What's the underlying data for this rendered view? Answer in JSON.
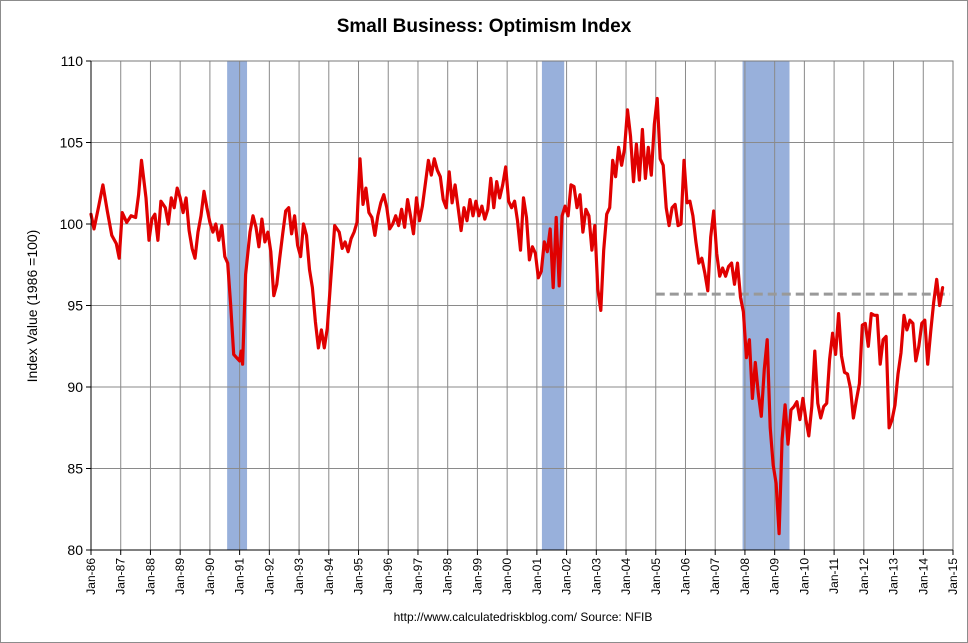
{
  "chart_data": {
    "type": "line",
    "title": "Small Business: Optimism Index",
    "xlabel": "",
    "ylabel": "Index Value (1986 =100)",
    "ylim": [
      80,
      110
    ],
    "yticks": [
      80,
      85,
      90,
      95,
      100,
      105,
      110
    ],
    "xlim": [
      1986,
      2015
    ],
    "xtick_labels": [
      "Jan-86",
      "Jan-87",
      "Jan-88",
      "Jan-89",
      "Jan-90",
      "Jan-91",
      "Jan-92",
      "Jan-93",
      "Jan-94",
      "Jan-95",
      "Jan-96",
      "Jan-97",
      "Jan-98",
      "Jan-99",
      "Jan-00",
      "Jan-01",
      "Jan-02",
      "Jan-03",
      "Jan-04",
      "Jan-05",
      "Jan-06",
      "Jan-07",
      "Jan-08",
      "Jan-09",
      "Jan-10",
      "Jan-11",
      "Jan-12",
      "Jan-13",
      "Jan-14",
      "Jan-15"
    ],
    "grid": true,
    "recessions": [
      {
        "start": 1990.58,
        "end": 1991.25
      },
      {
        "start": 2001.17,
        "end": 2001.92
      },
      {
        "start": 2007.92,
        "end": 2009.5
      }
    ],
    "reference_line": {
      "value": 95.7,
      "x_start": 2005.0,
      "x_end": 2014.9,
      "color": "#999999"
    },
    "series": [
      {
        "name": "Optimism Index",
        "color": "#e00000",
        "points": [
          [
            1986.0,
            100.6
          ],
          [
            1986.1,
            99.7
          ],
          [
            1986.25,
            101.0
          ],
          [
            1986.4,
            102.4
          ],
          [
            1986.55,
            100.8
          ],
          [
            1986.7,
            99.3
          ],
          [
            1986.85,
            98.8
          ],
          [
            1986.95,
            97.9
          ],
          [
            1987.05,
            100.7
          ],
          [
            1987.2,
            100.1
          ],
          [
            1987.35,
            100.5
          ],
          [
            1987.5,
            100.4
          ],
          [
            1987.6,
            101.8
          ],
          [
            1987.7,
            103.9
          ],
          [
            1987.85,
            101.6
          ],
          [
            1987.95,
            99.0
          ],
          [
            1988.05,
            100.3
          ],
          [
            1988.15,
            100.6
          ],
          [
            1988.25,
            99.0
          ],
          [
            1988.35,
            101.4
          ],
          [
            1988.5,
            101.0
          ],
          [
            1988.6,
            100.0
          ],
          [
            1988.7,
            101.6
          ],
          [
            1988.8,
            101.0
          ],
          [
            1988.9,
            102.2
          ],
          [
            1989.0,
            101.6
          ],
          [
            1989.1,
            100.7
          ],
          [
            1989.2,
            101.6
          ],
          [
            1989.3,
            99.6
          ],
          [
            1989.4,
            98.5
          ],
          [
            1989.5,
            97.9
          ],
          [
            1989.6,
            99.5
          ],
          [
            1989.7,
            100.5
          ],
          [
            1989.8,
            102.0
          ],
          [
            1989.9,
            101.0
          ],
          [
            1990.0,
            100.1
          ],
          [
            1990.1,
            99.5
          ],
          [
            1990.2,
            100.0
          ],
          [
            1990.3,
            99.0
          ],
          [
            1990.4,
            99.9
          ],
          [
            1990.5,
            98.0
          ],
          [
            1990.6,
            97.6
          ],
          [
            1990.7,
            95.0
          ],
          [
            1990.8,
            92.0
          ],
          [
            1990.9,
            91.8
          ],
          [
            1991.0,
            91.6
          ],
          [
            1991.05,
            92.2
          ],
          [
            1991.1,
            91.4
          ],
          [
            1991.2,
            96.9
          ],
          [
            1991.35,
            99.5
          ],
          [
            1991.45,
            100.5
          ],
          [
            1991.55,
            99.8
          ],
          [
            1991.65,
            98.6
          ],
          [
            1991.75,
            100.3
          ],
          [
            1991.85,
            98.9
          ],
          [
            1991.95,
            99.5
          ],
          [
            1992.05,
            98.3
          ],
          [
            1992.15,
            95.6
          ],
          [
            1992.25,
            96.3
          ],
          [
            1992.35,
            97.9
          ],
          [
            1992.45,
            99.4
          ],
          [
            1992.55,
            100.8
          ],
          [
            1992.65,
            101.0
          ],
          [
            1992.75,
            99.4
          ],
          [
            1992.85,
            100.5
          ],
          [
            1992.95,
            98.7
          ],
          [
            1993.05,
            98.0
          ],
          [
            1993.15,
            100.0
          ],
          [
            1993.25,
            99.3
          ],
          [
            1993.35,
            97.2
          ],
          [
            1993.45,
            96.1
          ],
          [
            1993.55,
            94.0
          ],
          [
            1993.65,
            92.4
          ],
          [
            1993.75,
            93.5
          ],
          [
            1993.85,
            92.4
          ],
          [
            1993.95,
            93.6
          ],
          [
            1994.05,
            96.2
          ],
          [
            1994.2,
            99.9
          ],
          [
            1994.35,
            99.5
          ],
          [
            1994.45,
            98.5
          ],
          [
            1994.55,
            98.9
          ],
          [
            1994.65,
            98.3
          ],
          [
            1994.75,
            99.1
          ],
          [
            1994.85,
            99.5
          ],
          [
            1994.95,
            100.1
          ],
          [
            1995.05,
            104.0
          ],
          [
            1995.15,
            101.2
          ],
          [
            1995.25,
            102.2
          ],
          [
            1995.35,
            100.7
          ],
          [
            1995.45,
            100.4
          ],
          [
            1995.55,
            99.3
          ],
          [
            1995.65,
            100.5
          ],
          [
            1995.75,
            101.3
          ],
          [
            1995.85,
            101.8
          ],
          [
            1995.95,
            101.0
          ],
          [
            1996.05,
            99.7
          ],
          [
            1996.15,
            100.0
          ],
          [
            1996.25,
            100.5
          ],
          [
            1996.35,
            99.9
          ],
          [
            1996.45,
            100.9
          ],
          [
            1996.55,
            99.8
          ],
          [
            1996.65,
            101.5
          ],
          [
            1996.75,
            100.5
          ],
          [
            1996.85,
            99.4
          ],
          [
            1996.95,
            101.6
          ],
          [
            1997.05,
            100.2
          ],
          [
            1997.15,
            101.1
          ],
          [
            1997.25,
            102.5
          ],
          [
            1997.35,
            103.9
          ],
          [
            1997.45,
            103.0
          ],
          [
            1997.55,
            104.0
          ],
          [
            1997.65,
            103.3
          ],
          [
            1997.75,
            102.9
          ],
          [
            1997.85,
            101.5
          ],
          [
            1997.95,
            101.0
          ],
          [
            1998.05,
            103.2
          ],
          [
            1998.15,
            101.3
          ],
          [
            1998.25,
            102.4
          ],
          [
            1998.35,
            101.0
          ],
          [
            1998.45,
            99.6
          ],
          [
            1998.55,
            101.0
          ],
          [
            1998.65,
            100.2
          ],
          [
            1998.75,
            101.5
          ],
          [
            1998.85,
            100.5
          ],
          [
            1998.95,
            101.4
          ],
          [
            1999.05,
            100.5
          ],
          [
            1999.15,
            101.1
          ],
          [
            1999.25,
            100.3
          ],
          [
            1999.35,
            100.9
          ],
          [
            1999.45,
            102.8
          ],
          [
            1999.55,
            101.0
          ],
          [
            1999.65,
            102.6
          ],
          [
            1999.75,
            101.6
          ],
          [
            1999.85,
            102.4
          ],
          [
            1999.95,
            103.5
          ],
          [
            2000.05,
            101.4
          ],
          [
            2000.15,
            101.0
          ],
          [
            2000.25,
            101.4
          ],
          [
            2000.35,
            100.2
          ],
          [
            2000.45,
            98.4
          ],
          [
            2000.55,
            101.6
          ],
          [
            2000.65,
            100.4
          ],
          [
            2000.75,
            97.8
          ],
          [
            2000.85,
            98.6
          ],
          [
            2000.95,
            98.2
          ],
          [
            2001.05,
            96.7
          ],
          [
            2001.15,
            97.1
          ],
          [
            2001.25,
            98.9
          ],
          [
            2001.35,
            98.3
          ],
          [
            2001.45,
            99.7
          ],
          [
            2001.55,
            96.1
          ],
          [
            2001.65,
            100.4
          ],
          [
            2001.75,
            96.2
          ],
          [
            2001.85,
            100.5
          ],
          [
            2001.95,
            101.1
          ],
          [
            2002.05,
            100.5
          ],
          [
            2002.15,
            102.4
          ],
          [
            2002.25,
            102.3
          ],
          [
            2002.35,
            101.0
          ],
          [
            2002.45,
            101.8
          ],
          [
            2002.55,
            99.5
          ],
          [
            2002.65,
            100.9
          ],
          [
            2002.75,
            100.5
          ],
          [
            2002.85,
            98.4
          ],
          [
            2002.95,
            99.9
          ],
          [
            2003.05,
            96.0
          ],
          [
            2003.15,
            94.7
          ],
          [
            2003.25,
            98.4
          ],
          [
            2003.35,
            100.6
          ],
          [
            2003.45,
            101.0
          ],
          [
            2003.55,
            103.9
          ],
          [
            2003.65,
            102.9
          ],
          [
            2003.75,
            104.7
          ],
          [
            2003.85,
            103.6
          ],
          [
            2003.95,
            104.6
          ],
          [
            2004.05,
            107.0
          ],
          [
            2004.15,
            105.4
          ],
          [
            2004.25,
            102.6
          ],
          [
            2004.35,
            104.9
          ],
          [
            2004.45,
            102.7
          ],
          [
            2004.55,
            105.8
          ],
          [
            2004.65,
            102.8
          ],
          [
            2004.75,
            104.7
          ],
          [
            2004.85,
            103.0
          ],
          [
            2004.95,
            106.1
          ],
          [
            2005.05,
            107.7
          ],
          [
            2005.15,
            104.0
          ],
          [
            2005.25,
            103.6
          ],
          [
            2005.35,
            101.0
          ],
          [
            2005.45,
            99.9
          ],
          [
            2005.55,
            101.0
          ],
          [
            2005.65,
            101.2
          ],
          [
            2005.75,
            99.9
          ],
          [
            2005.85,
            100.0
          ],
          [
            2005.95,
            103.9
          ],
          [
            2006.05,
            101.3
          ],
          [
            2006.15,
            101.4
          ],
          [
            2006.25,
            100.5
          ],
          [
            2006.35,
            98.9
          ],
          [
            2006.45,
            97.6
          ],
          [
            2006.55,
            97.9
          ],
          [
            2006.65,
            97.0
          ],
          [
            2006.75,
            95.9
          ],
          [
            2006.85,
            99.2
          ],
          [
            2006.95,
            100.8
          ],
          [
            2007.05,
            98.2
          ],
          [
            2007.15,
            96.8
          ],
          [
            2007.25,
            97.3
          ],
          [
            2007.35,
            96.8
          ],
          [
            2007.45,
            97.4
          ],
          [
            2007.55,
            97.6
          ],
          [
            2007.65,
            96.3
          ],
          [
            2007.75,
            97.6
          ],
          [
            2007.85,
            95.5
          ],
          [
            2007.95,
            94.6
          ],
          [
            2008.05,
            91.8
          ],
          [
            2008.15,
            92.9
          ],
          [
            2008.25,
            89.3
          ],
          [
            2008.35,
            91.5
          ],
          [
            2008.45,
            89.6
          ],
          [
            2008.55,
            88.2
          ],
          [
            2008.65,
            91.1
          ],
          [
            2008.75,
            92.9
          ],
          [
            2008.85,
            87.5
          ],
          [
            2008.95,
            85.2
          ],
          [
            2009.05,
            84.1
          ],
          [
            2009.15,
            81.0
          ],
          [
            2009.25,
            86.8
          ],
          [
            2009.35,
            88.9
          ],
          [
            2009.45,
            86.5
          ],
          [
            2009.55,
            88.6
          ],
          [
            2009.65,
            88.8
          ],
          [
            2009.75,
            89.1
          ],
          [
            2009.85,
            88.0
          ],
          [
            2009.95,
            89.3
          ],
          [
            2010.05,
            88.0
          ],
          [
            2010.15,
            87.0
          ],
          [
            2010.25,
            88.8
          ],
          [
            2010.35,
            92.2
          ],
          [
            2010.45,
            89.0
          ],
          [
            2010.55,
            88.1
          ],
          [
            2010.65,
            88.8
          ],
          [
            2010.75,
            89.0
          ],
          [
            2010.85,
            91.7
          ],
          [
            2010.95,
            93.3
          ],
          [
            2011.05,
            92.0
          ],
          [
            2011.15,
            94.5
          ],
          [
            2011.25,
            91.9
          ],
          [
            2011.35,
            90.9
          ],
          [
            2011.45,
            90.8
          ],
          [
            2011.55,
            89.9
          ],
          [
            2011.65,
            88.1
          ],
          [
            2011.75,
            89.2
          ],
          [
            2011.85,
            90.2
          ],
          [
            2011.95,
            93.8
          ],
          [
            2012.05,
            93.9
          ],
          [
            2012.15,
            92.5
          ],
          [
            2012.25,
            94.5
          ],
          [
            2012.35,
            94.4
          ],
          [
            2012.45,
            94.4
          ],
          [
            2012.55,
            91.4
          ],
          [
            2012.65,
            92.9
          ],
          [
            2012.75,
            93.1
          ],
          [
            2012.85,
            87.5
          ],
          [
            2012.95,
            88.0
          ],
          [
            2013.05,
            88.9
          ],
          [
            2013.15,
            90.8
          ],
          [
            2013.25,
            92.1
          ],
          [
            2013.35,
            94.4
          ],
          [
            2013.45,
            93.5
          ],
          [
            2013.55,
            94.1
          ],
          [
            2013.65,
            93.9
          ],
          [
            2013.75,
            91.6
          ],
          [
            2013.85,
            92.5
          ],
          [
            2013.95,
            93.9
          ],
          [
            2014.05,
            94.1
          ],
          [
            2014.15,
            91.4
          ],
          [
            2014.25,
            93.4
          ],
          [
            2014.35,
            95.2
          ],
          [
            2014.45,
            96.6
          ],
          [
            2014.55,
            95.0
          ],
          [
            2014.65,
            96.1
          ]
        ]
      }
    ],
    "source_text": "http://www.calculatedriskblog.com/   Source:  NFIB"
  }
}
